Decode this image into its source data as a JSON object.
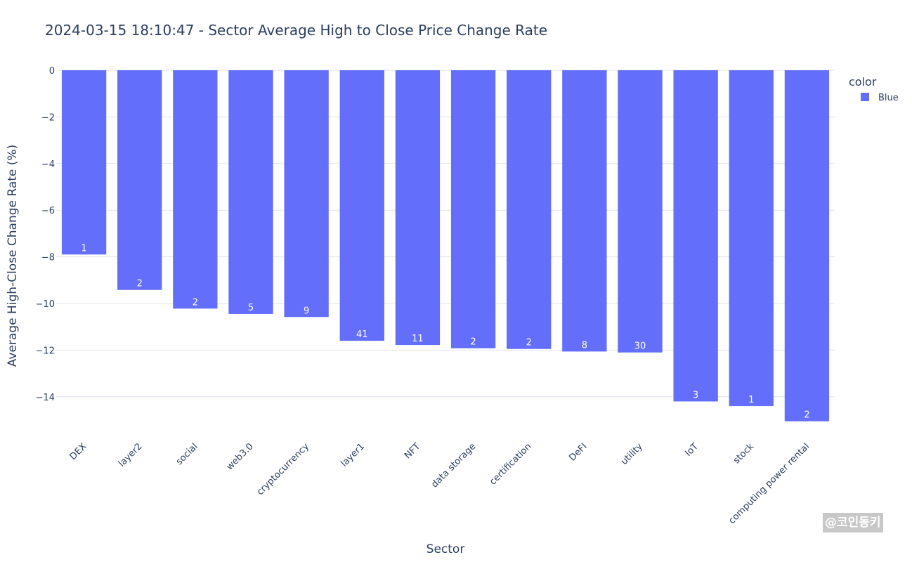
{
  "chart_data": {
    "type": "bar",
    "title": "2024-03-15 18:10:47 - Sector Average High to Close Price Change Rate",
    "xlabel": "Sector",
    "ylabel": "Average High-Close Change Rate (%)",
    "categories": [
      "DEX",
      "layer2",
      "social",
      "web3.0",
      "cryptocurrency",
      "layer1",
      "NFT",
      "data storage",
      "certification",
      "DeFI",
      "utility",
      "IoT",
      "stock",
      "computing power rental"
    ],
    "series": [
      {
        "name": "Blue",
        "values": [
          -7.9,
          -9.42,
          -10.22,
          -10.45,
          -10.58,
          -11.6,
          -11.78,
          -11.92,
          -11.95,
          -12.06,
          -12.1,
          -14.2,
          -14.4,
          -15.05
        ],
        "labels": [
          "1",
          "2",
          "2",
          "5",
          "9",
          "41",
          "11",
          "2",
          "2",
          "8",
          "30",
          "3",
          "1",
          "2"
        ]
      }
    ],
    "ylim": [
      -15.7,
      0.4
    ],
    "yticks": [
      0,
      -2,
      -4,
      -6,
      -8,
      -10,
      -12,
      -14
    ],
    "ytick_labels": [
      "0",
      "−2",
      "−4",
      "−6",
      "−8",
      "−10",
      "−12",
      "−14"
    ],
    "grid": true,
    "legend": {
      "title": "color",
      "position": "top-right",
      "entries": [
        "Blue"
      ]
    },
    "colors": {
      "bar": "#636efa",
      "text": "#2a3f5f",
      "grid": "#dfe3ea",
      "bar_label": "#ffffff"
    }
  },
  "watermark": "@코인동키"
}
